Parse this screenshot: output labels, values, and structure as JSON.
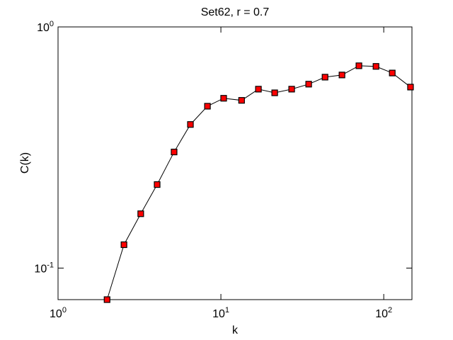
{
  "chart_data": {
    "type": "line",
    "title": "Set62, r = 0.7",
    "xlabel": "k",
    "ylabel": "C(k)",
    "xscale": "log",
    "yscale": "log",
    "x": [
      2.0,
      2.54,
      3.22,
      4.06,
      5.16,
      6.5,
      8.27,
      10.4,
      13.4,
      17.0,
      21.4,
      27.2,
      34.6,
      43.6,
      55.4,
      70.4,
      89.6,
      112.8,
      146
    ],
    "series": [
      {
        "name": "C(k)",
        "color": "#ff0000",
        "values": [
          0.074,
          0.125,
          0.168,
          0.222,
          0.303,
          0.394,
          0.469,
          0.506,
          0.496,
          0.552,
          0.533,
          0.552,
          0.579,
          0.619,
          0.632,
          0.69,
          0.686,
          0.644,
          0.563
        ]
      }
    ],
    "xlim": [
      1,
      149
    ],
    "ylim": [
      0.074,
      1
    ],
    "xticks": [
      {
        "value": 1,
        "label": "10^0"
      },
      {
        "value": 10,
        "label": "10^1"
      },
      {
        "value": 100,
        "label": "10^2"
      }
    ],
    "yticks": [
      {
        "value": 0.1,
        "label": "10^-1"
      },
      {
        "value": 1,
        "label": "10^0"
      }
    ]
  }
}
